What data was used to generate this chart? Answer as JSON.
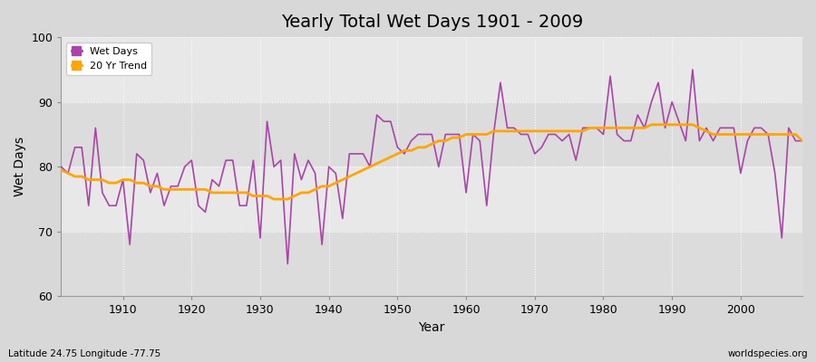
{
  "title": "Yearly Total Wet Days 1901 - 2009",
  "xlabel": "Year",
  "ylabel": "Wet Days",
  "subtitle_left": "Latitude 24.75 Longitude -77.75",
  "subtitle_right": "worldspecies.org",
  "ylim": [
    60,
    100
  ],
  "xlim": [
    1901,
    2009
  ],
  "line_color": "#AA44AA",
  "trend_color": "#FFA500",
  "plot_bg_color": "#E0E0E0",
  "fig_bg_color": "#D8D8D8",
  "years": [
    1901,
    1902,
    1903,
    1904,
    1905,
    1906,
    1907,
    1908,
    1909,
    1910,
    1911,
    1912,
    1913,
    1914,
    1915,
    1916,
    1917,
    1918,
    1919,
    1920,
    1921,
    1922,
    1923,
    1924,
    1925,
    1926,
    1927,
    1928,
    1929,
    1930,
    1931,
    1932,
    1933,
    1934,
    1935,
    1936,
    1937,
    1938,
    1939,
    1940,
    1941,
    1942,
    1943,
    1944,
    1945,
    1946,
    1947,
    1948,
    1949,
    1950,
    1951,
    1952,
    1953,
    1954,
    1955,
    1956,
    1957,
    1958,
    1959,
    1960,
    1961,
    1962,
    1963,
    1964,
    1965,
    1966,
    1967,
    1968,
    1969,
    1970,
    1971,
    1972,
    1973,
    1974,
    1975,
    1976,
    1977,
    1978,
    1979,
    1980,
    1981,
    1982,
    1983,
    1984,
    1985,
    1986,
    1987,
    1988,
    1989,
    1990,
    1991,
    1992,
    1993,
    1994,
    1995,
    1996,
    1997,
    1998,
    1999,
    2000,
    2001,
    2002,
    2003,
    2004,
    2005,
    2006,
    2007,
    2008,
    2009
  ],
  "wet_days": [
    80,
    79,
    83,
    83,
    74,
    86,
    76,
    74,
    74,
    78,
    68,
    82,
    81,
    76,
    79,
    74,
    77,
    77,
    80,
    81,
    74,
    73,
    78,
    77,
    81,
    81,
    74,
    74,
    81,
    69,
    87,
    80,
    81,
    65,
    82,
    78,
    81,
    79,
    68,
    80,
    79,
    72,
    82,
    82,
    82,
    80,
    88,
    87,
    87,
    83,
    82,
    84,
    85,
    85,
    85,
    80,
    85,
    85,
    85,
    76,
    85,
    84,
    74,
    85,
    93,
    86,
    86,
    85,
    85,
    82,
    83,
    85,
    85,
    84,
    85,
    81,
    86,
    86,
    86,
    85,
    94,
    85,
    84,
    84,
    88,
    86,
    90,
    93,
    86,
    90,
    87,
    84,
    95,
    84,
    86,
    84,
    86,
    86,
    86,
    79,
    84,
    86,
    86,
    85,
    79,
    69,
    86,
    84,
    84
  ],
  "trend_start_year": 1901,
  "trend_values": [
    79.5,
    79,
    78.5,
    78.5,
    78,
    78,
    78,
    77.5,
    77.5,
    78,
    78,
    77.5,
    77.5,
    77,
    77,
    76.5,
    76.5,
    76.5,
    76.5,
    76.5,
    76.5,
    76.5,
    76,
    76,
    76,
    76,
    76,
    76,
    75.5,
    75.5,
    75.5,
    75,
    75,
    75,
    75.5,
    76,
    76,
    76.5,
    77,
    77,
    77.5,
    78,
    78.5,
    79,
    79.5,
    80,
    80.5,
    81,
    81.5,
    82,
    82.5,
    82.5,
    83,
    83,
    83.5,
    84,
    84,
    84.5,
    84.5,
    85,
    85,
    85,
    85,
    85.5,
    85.5,
    85.5,
    85.5,
    85.5,
    85.5,
    85.5,
    85.5,
    85.5,
    85.5,
    85.5,
    85.5,
    85.5,
    85.5,
    86,
    86,
    86,
    86,
    86,
    86,
    86,
    86,
    86,
    86.5,
    86.5,
    86.5,
    86.5,
    86.5,
    86.5,
    86.5,
    86,
    85.5,
    85,
    85,
    85,
    85,
    85,
    85,
    85,
    85,
    85,
    85,
    85,
    85,
    85,
    84
  ],
  "legend_wet": "Wet Days",
  "legend_trend": "20 Yr Trend",
  "xticks": [
    1910,
    1920,
    1930,
    1940,
    1950,
    1960,
    1970,
    1980,
    1990,
    2000
  ],
  "yticks": [
    60,
    70,
    80,
    90,
    100
  ],
  "grid_color": "#FFFFFF",
  "grid_style": ":"
}
